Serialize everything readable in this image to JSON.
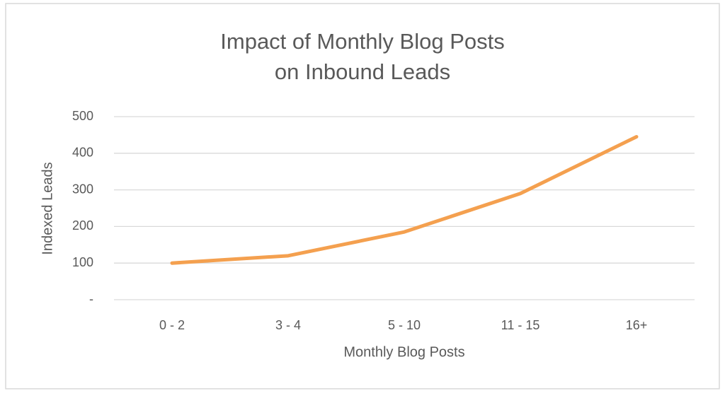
{
  "chart_data": {
    "type": "line",
    "title": [
      "Impact of Monthly Blog Posts",
      "on Inbound Leads"
    ],
    "x_label": "Monthly Blog Posts",
    "y_label": "Indexed Leads",
    "categories": [
      "0 - 2",
      "3 - 4",
      "5 - 10",
      "11 - 15",
      "16+"
    ],
    "values": [
      100,
      120,
      185,
      290,
      445
    ],
    "color": "#f4a04f",
    "ylim": [
      0,
      500
    ],
    "yticks": [
      {
        "value": 0,
        "label": "-"
      },
      100,
      200,
      300,
      400,
      500
    ],
    "grid": true
  }
}
